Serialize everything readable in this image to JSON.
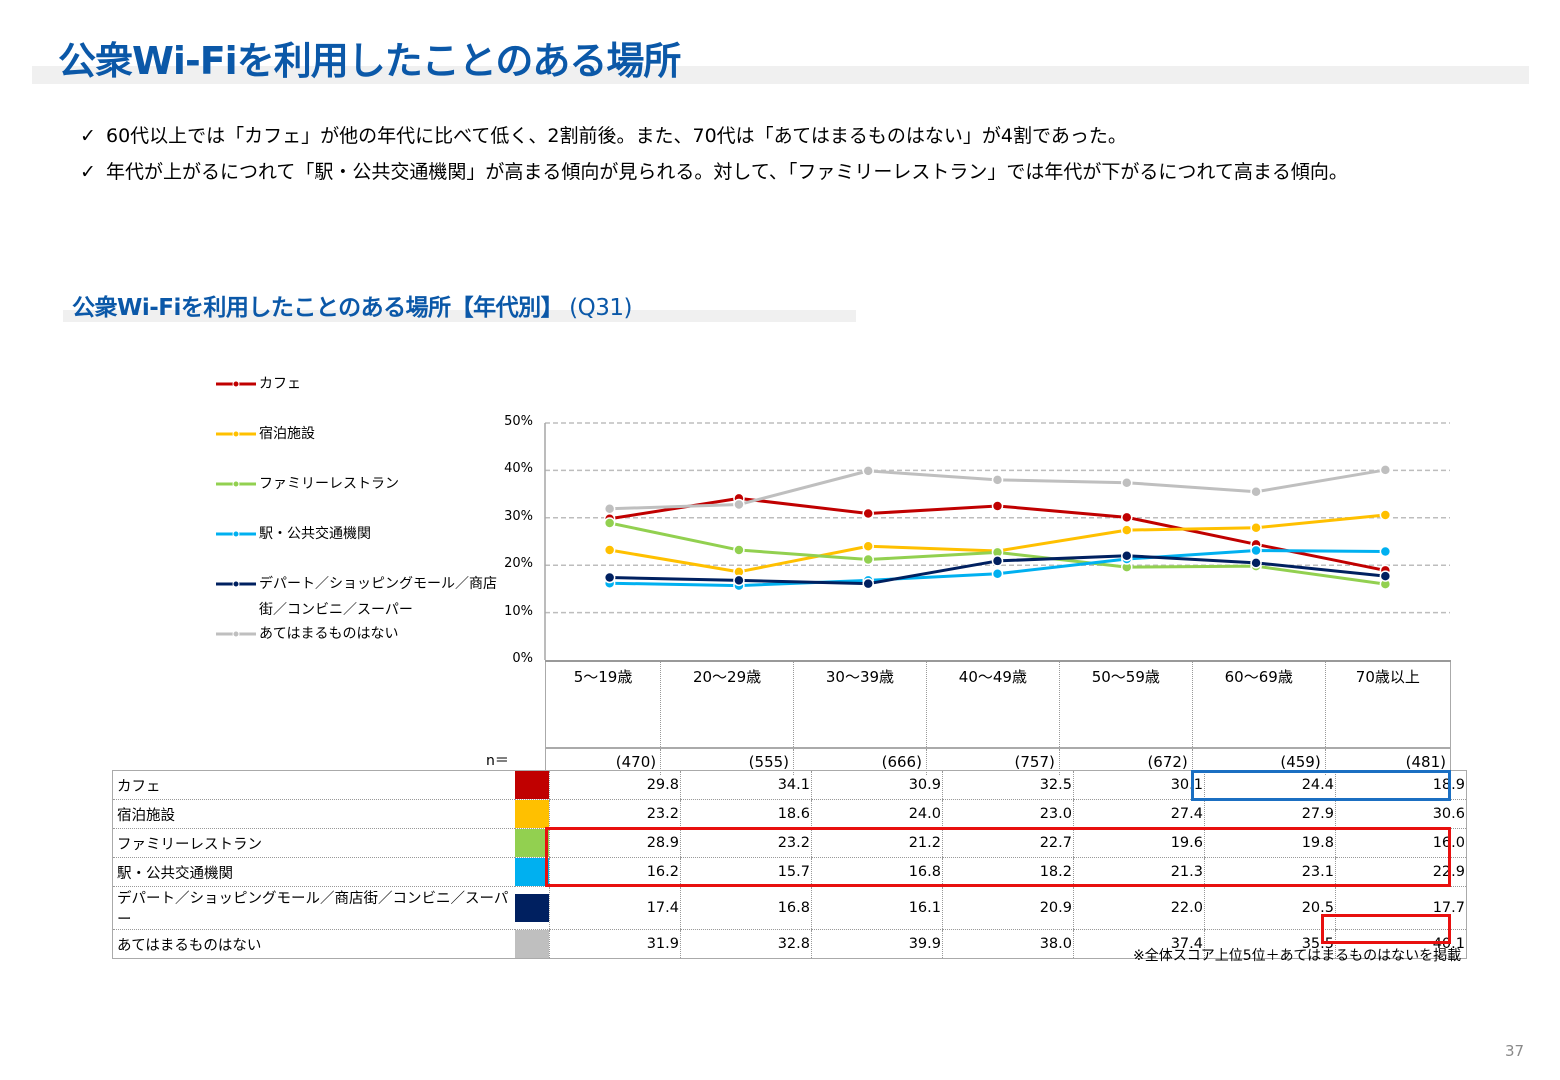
{
  "page": {
    "title": "公衆Wi-Fiを利用したことのある場所",
    "bullets": [
      "60代以上では「カフェ」が他の年代に比べて低く、2割前後。また、70代は「あてはまるものはない」が4割であった。",
      "年代が上がるにつれて「駅・公共交通機関」が高まる傾向が見られる。対して、「ファミリーレストラン」では年代が下がるにつれて高まる傾向。"
    ],
    "bullet_icon": "check-icon",
    "bullet_glyph": "✓",
    "section_title": "公衆Wi-Fiを利用したことのある場所【年代別】",
    "section_question": "(Q31)",
    "n_label": "n＝",
    "note": "※全体スコア上位5位＋あてはまるものはないを掲載",
    "page_number": "37",
    "colors": {
      "title": "#0b58a8",
      "highlight_red": "#e8100f",
      "highlight_blue": "#1b6fc2"
    }
  },
  "chart_data": {
    "type": "line",
    "title": "公衆Wi-Fiを利用したことのある場所【年代別】 (Q31)",
    "xlabel": "",
    "ylabel": "",
    "ylim": [
      0,
      50
    ],
    "yticks": [
      "0%",
      "10%",
      "20%",
      "30%",
      "40%",
      "50%"
    ],
    "grid": true,
    "legend_position": "left",
    "categories": [
      "5～19歳",
      "20～29歳",
      "30～39歳",
      "40～49歳",
      "50～59歳",
      "60～69歳",
      "70歳以上"
    ],
    "n": [
      "(470)",
      "(555)",
      "(666)",
      "(757)",
      "(672)",
      "(459)",
      "(481)"
    ],
    "series": [
      {
        "name": "カフェ",
        "color": "#c00000",
        "values": [
          29.8,
          34.1,
          30.9,
          32.5,
          30.1,
          24.4,
          18.9
        ]
      },
      {
        "name": "宿泊施設",
        "color": "#ffc000",
        "values": [
          23.2,
          18.6,
          24.0,
          23.0,
          27.4,
          27.9,
          30.6
        ]
      },
      {
        "name": "ファミリーレストラン",
        "color": "#92d050",
        "values": [
          28.9,
          23.2,
          21.2,
          22.7,
          19.6,
          19.8,
          16.0
        ]
      },
      {
        "name": "駅・公共交通機関",
        "color": "#00b0f0",
        "values": [
          16.2,
          15.7,
          16.8,
          18.2,
          21.3,
          23.1,
          22.9
        ]
      },
      {
        "name": "デパート／ショッピングモール／商店街／コンビニ／スーパー",
        "color": "#002060",
        "values": [
          17.4,
          16.8,
          16.1,
          20.9,
          22.0,
          20.5,
          17.7
        ]
      },
      {
        "name": "あてはまるものはない",
        "color": "#bfbfbf",
        "values": [
          31.9,
          32.8,
          39.9,
          38.0,
          37.4,
          35.5,
          40.1
        ]
      }
    ],
    "legend_labels": [
      [
        "カフェ"
      ],
      [
        "宿泊施設"
      ],
      [
        "ファミリーレストラン"
      ],
      [
        "駅・公共交通機関"
      ],
      [
        "デパート／ショッピングモール／商店",
        "街／コンビニ／スーパー"
      ],
      [
        "あてはまるものはない"
      ]
    ],
    "table_values": [
      [
        "29.8",
        "34.1",
        "30.9",
        "32.5",
        "30.1",
        "24.4",
        "18.9"
      ],
      [
        "23.2",
        "18.6",
        "24.0",
        "23.0",
        "27.4",
        "27.9",
        "30.6"
      ],
      [
        "28.9",
        "23.2",
        "21.2",
        "22.7",
        "19.6",
        "19.8",
        "16.0"
      ],
      [
        "16.2",
        "15.7",
        "16.8",
        "18.2",
        "21.3",
        "23.1",
        "22.9"
      ],
      [
        "17.4",
        "16.8",
        "16.1",
        "20.9",
        "22.0",
        "20.5",
        "17.7"
      ],
      [
        "31.9",
        "32.8",
        "39.9",
        "38.0",
        "37.4",
        "35.5",
        "40.1"
      ]
    ],
    "highlights": [
      {
        "color": "blue",
        "rows": [
          0,
          0
        ],
        "cols": [
          5,
          6
        ]
      },
      {
        "color": "red",
        "rows": [
          2,
          3
        ],
        "cols": [
          0,
          6
        ]
      },
      {
        "color": "red",
        "rows": [
          5,
          5
        ],
        "cols": [
          6,
          6
        ]
      }
    ]
  }
}
